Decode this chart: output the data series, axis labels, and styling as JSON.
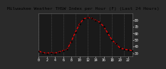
{
  "title": "Milwaukee Weather THSW Index per Hour (F) (Last 24 Hours)",
  "hours": [
    0,
    1,
    2,
    3,
    4,
    5,
    6,
    7,
    8,
    9,
    10,
    11,
    12,
    13,
    14,
    15,
    16,
    17,
    18,
    19,
    20,
    21,
    22,
    23
  ],
  "values": [
    33,
    31,
    30,
    31,
    30,
    32,
    34,
    36,
    48,
    62,
    74,
    82,
    84,
    83,
    80,
    77,
    70,
    60,
    50,
    44,
    38,
    36,
    35,
    34
  ],
  "y_ticks": [
    30,
    40,
    50,
    60,
    70,
    80
  ],
  "ylim": [
    25,
    90
  ],
  "xlim": [
    0,
    23
  ],
  "plot_bg": "#1a1a1a",
  "outer_bg": "#2a2a2a",
  "line_color": "#ff0000",
  "dot_color": "#000000",
  "grid_color": "#606060",
  "title_color": "#000000",
  "title_fontsize": 4.5,
  "tick_fontsize": 3.5,
  "ytick_labels": [
    "30",
    "40",
    "50",
    "60",
    "70",
    "80"
  ],
  "x_tick_positions": [
    0,
    2,
    4,
    6,
    8,
    10,
    12,
    14,
    16,
    18,
    20,
    22
  ],
  "x_tick_labels": [
    "0",
    "2",
    "4",
    "6",
    "8",
    "10",
    "12",
    "14",
    "16",
    "18",
    "20",
    "22"
  ],
  "vgrid_positions": [
    0,
    3,
    6,
    9,
    12,
    15,
    18,
    21
  ]
}
